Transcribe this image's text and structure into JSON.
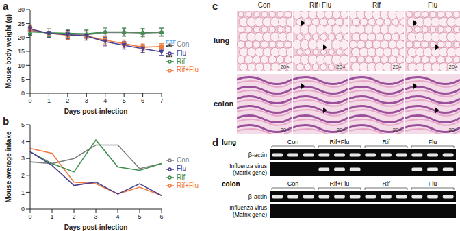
{
  "chart_data": [
    {
      "type": "line",
      "panel": "a",
      "categories": [
        "0",
        "1",
        "2",
        "3",
        "4",
        "5",
        "6",
        "7"
      ],
      "x_label": "Days post-infection",
      "y_label": "Mouse body weight (g)",
      "ylim": [
        0,
        30
      ],
      "yticks": [
        0,
        5,
        10,
        15,
        20,
        25,
        30
      ],
      "legend": "right",
      "series": [
        {
          "name": "Con",
          "color": "#808080",
          "marker": "circle",
          "values": [
            22.5,
            21.5,
            21.3,
            21.0,
            21.8,
            21.8,
            21.6,
            21.8
          ],
          "errors": [
            1.5,
            1.5,
            1.5,
            1.5,
            1.3,
            1.4,
            1.4,
            1.4
          ]
        },
        {
          "name": "Rif+Flu",
          "color": "#f07b3f",
          "marker": "square",
          "values": [
            22.8,
            21.5,
            20.8,
            20.6,
            19.0,
            17.8,
            16.5,
            16.8
          ],
          "errors": [
            1.5,
            1.5,
            1.5,
            1.5,
            1.3,
            1.3,
            1.2,
            1.0
          ]
        },
        {
          "name": "Rif",
          "color": "#3f8f4f",
          "marker": "triangle",
          "values": [
            22.0,
            21.7,
            21.5,
            21.3,
            22.0,
            22.0,
            21.8,
            22.0
          ],
          "errors": [
            1.2,
            1.4,
            1.4,
            1.5,
            1.4,
            1.4,
            1.4,
            1.4
          ]
        },
        {
          "name": "Flu",
          "color": "#4b3f8f",
          "marker": "triangle-down",
          "values": [
            23.0,
            21.5,
            21.0,
            20.5,
            18.5,
            17.2,
            16.0,
            14.8
          ],
          "errors": [
            1.5,
            1.5,
            1.5,
            1.5,
            1.5,
            1.4,
            1.4,
            1.2
          ]
        }
      ],
      "annotations": [
        {
          "text": "###",
          "x": "7",
          "y": 18.6,
          "color": "#2f8fe0"
        },
        {
          "text": "***",
          "x": "7",
          "y": 16.8,
          "color": "#000000"
        },
        {
          "text": "***",
          "x": "7",
          "y": 13.2,
          "color": "#000000"
        }
      ]
    },
    {
      "type": "line",
      "panel": "b",
      "categories": [
        "0",
        "1",
        "2",
        "3",
        "4",
        "5",
        "6"
      ],
      "x_label": "Days post-infection",
      "y_label": "Mouse average intake",
      "ylim": [
        0,
        5
      ],
      "yticks": [
        0,
        1,
        2,
        3,
        4,
        5
      ],
      "legend": "right",
      "series": [
        {
          "name": "Con",
          "color": "#808080",
          "values": [
            2.8,
            2.7,
            3.0,
            3.8,
            3.8,
            2.4,
            2.7
          ]
        },
        {
          "name": "Rif+Flu",
          "color": "#f07b3f",
          "values": [
            3.6,
            3.3,
            1.6,
            1.5,
            0.9,
            1.3,
            0.8
          ]
        },
        {
          "name": "Rif",
          "color": "#3f8f4f",
          "values": [
            3.4,
            2.7,
            2.2,
            4.1,
            2.5,
            2.3,
            2.7
          ]
        },
        {
          "name": "Flu",
          "color": "#4b3f8f",
          "values": [
            3.4,
            2.6,
            1.4,
            1.6,
            0.9,
            1.5,
            0.8
          ]
        }
      ]
    }
  ],
  "panel_c": {
    "label": "c",
    "columns": [
      "Con",
      "Rif+Flu",
      "Rif",
      "Flu"
    ],
    "magnification": "20×",
    "rows": [
      {
        "name": "lung",
        "tissue": "lung"
      },
      {
        "name": "colon",
        "tissue": "colon"
      }
    ]
  },
  "panel_d": {
    "label": "d",
    "sections": [
      {
        "name": "lung",
        "groups": [
          "Con",
          "Rif+Flu",
          "Rif",
          "Flu"
        ],
        "rows": [
          {
            "label": "β-actin",
            "bands": [
              1,
              1,
              1,
              1,
              1,
              1,
              1,
              1,
              1,
              1,
              1,
              1
            ]
          },
          {
            "label": "Influenza virus",
            "sublabel": "(Matrix gene)",
            "bands": [
              0,
              0,
              0,
              1,
              1,
              1,
              0,
              0,
              0,
              1,
              1,
              1
            ]
          }
        ]
      },
      {
        "name": "colon",
        "groups": [
          "Con",
          "Rif+Flu",
          "Rif",
          "Flu"
        ],
        "rows": [
          {
            "label": "β-actin",
            "bands": [
              1,
              1,
              1,
              1,
              1,
              1,
              1,
              1,
              1,
              1,
              1,
              1
            ]
          },
          {
            "label": "Influenza virus",
            "sublabel": "(Matrix gene)",
            "bands": [
              0,
              0,
              0,
              0,
              0,
              0,
              0,
              0,
              0,
              0,
              0,
              0
            ]
          }
        ]
      }
    ]
  }
}
